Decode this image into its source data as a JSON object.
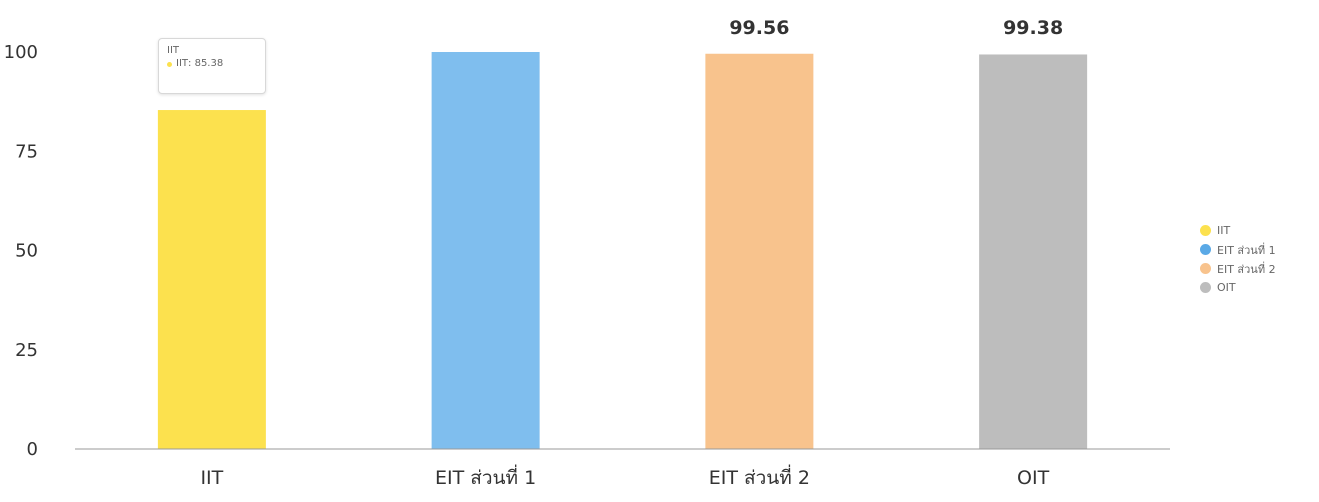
{
  "chart_data": {
    "type": "bar",
    "categories": [
      "IIT",
      "EIT ส่วนที่ 1",
      "EIT ส่วนที่ 2",
      "OIT"
    ],
    "values": [
      85.38,
      100,
      99.56,
      99.38
    ],
    "value_labels": [
      "",
      "",
      "99.56",
      "99.38"
    ],
    "colors": [
      "#fce14e",
      "#7fbeee",
      "#f8c38d",
      "#bdbdbd"
    ],
    "ylim": [
      0,
      100
    ],
    "yticks": [
      0,
      25,
      50,
      75,
      100
    ],
    "grid": false,
    "legend": {
      "placement": "right",
      "entries": [
        "IIT",
        "EIT ส่วนที่ 1",
        "EIT ส่วนที่ 2",
        "OIT"
      ]
    },
    "tooltip": {
      "title": "IIT",
      "series": "IIT",
      "value": "85.38"
    }
  }
}
